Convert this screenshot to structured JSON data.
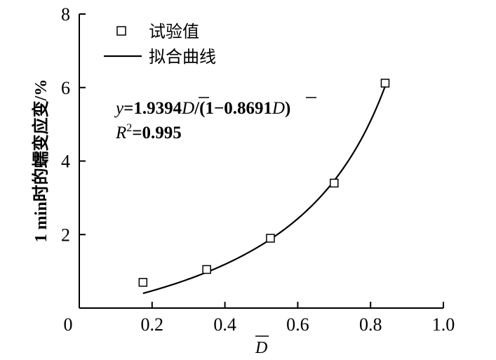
{
  "chart_data": {
    "type": "scatter",
    "title": "",
    "xlabel": "D",
    "ylabel": "1 min时的蠕变应变/%",
    "xlim": [
      0,
      1.0
    ],
    "ylim": [
      0,
      8
    ],
    "x_ticks": [
      0,
      0.2,
      0.4,
      0.6,
      0.8,
      1.0
    ],
    "x_tick_labels": [
      "0",
      "0.2",
      "0.4",
      "0.6",
      "0.8",
      "1.0"
    ],
    "y_ticks": [
      2,
      4,
      6,
      8
    ],
    "y_tick_labels": [
      "2",
      "4",
      "6",
      "8"
    ],
    "grid": false,
    "legend_position": "top-left",
    "series": [
      {
        "name": "试验值",
        "kind": "scatter",
        "marker": "hollow-square",
        "x": [
          0.175,
          0.35,
          0.525,
          0.7,
          0.84
        ],
        "y": [
          0.7,
          1.05,
          1.9,
          3.4,
          6.12
        ]
      },
      {
        "name": "拟合曲线",
        "kind": "line",
        "formula": {
          "a": 1.9394,
          "b": 0.8691
        },
        "x_range": [
          0.175,
          0.84
        ]
      }
    ],
    "annotations": {
      "equation": {
        "y": "y",
        "eq1": "=1.9394",
        "D1": "D",
        "eq2": "/(1−0.8691",
        "D2": "D",
        "eq3": ")"
      },
      "r2": {
        "R": "R",
        "sup": "2",
        "value": "=0.995"
      }
    }
  }
}
